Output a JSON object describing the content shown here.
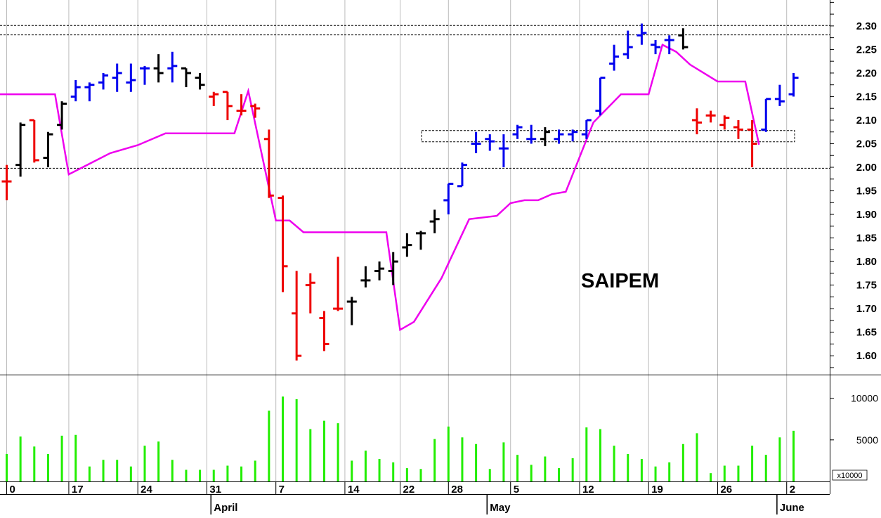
{
  "chart_data": {
    "type": "ohlc-bar-with-volume",
    "title": "SAIPEM",
    "colors": {
      "up": "#0000ee",
      "down": "#ee0000",
      "neutral": "#000000",
      "stop_line": "#ee00ee",
      "volume": "#22ee00",
      "grid": "#bbbbbb"
    },
    "price_axis": {
      "ylim": [
        1.56,
        2.355
      ],
      "ticks": [
        "1.60",
        "1.65",
        "1.70",
        "1.75",
        "1.80",
        "1.85",
        "1.90",
        "1.95",
        "2.00",
        "2.05",
        "2.10",
        "2.15",
        "2.20",
        "2.25",
        "2.30"
      ]
    },
    "volume_axis": {
      "ylim": [
        0,
        12000
      ],
      "ticks": [
        {
          "value": 5000,
          "label": "5000"
        },
        {
          "value": 10000,
          "label": "10000"
        }
      ],
      "multiplier_label": "x10000"
    },
    "x_ticks": [
      "0",
      "17",
      "24",
      "31",
      "7",
      "14",
      "22",
      "28",
      "5",
      "12",
      "19",
      "26",
      "2"
    ],
    "months": [
      "April",
      "May",
      "June"
    ],
    "bars": [
      {
        "o": 1.97,
        "h": 2.005,
        "l": 1.93,
        "c": 1.97,
        "color": "red",
        "vol": 3300
      },
      {
        "o": 2.005,
        "h": 2.095,
        "l": 1.98,
        "c": 2.09,
        "color": "black",
        "vol": 5400
      },
      {
        "o": 2.1,
        "h": 2.1,
        "l": 2.01,
        "c": 2.015,
        "color": "red",
        "vol": 4200
      },
      {
        "o": 2.02,
        "h": 2.075,
        "l": 2.0,
        "c": 2.07,
        "color": "black",
        "vol": 3300
      },
      {
        "o": 2.09,
        "h": 2.14,
        "l": 2.08,
        "c": 2.135,
        "color": "black",
        "vol": 5500
      },
      {
        "o": 2.15,
        "h": 2.185,
        "l": 2.14,
        "c": 2.17,
        "color": "blue",
        "vol": 5600
      },
      {
        "o": 2.17,
        "h": 2.18,
        "l": 2.14,
        "c": 2.175,
        "color": "blue",
        "vol": 1800
      },
      {
        "o": 2.18,
        "h": 2.2,
        "l": 2.165,
        "c": 2.195,
        "color": "blue",
        "vol": 2600
      },
      {
        "o": 2.19,
        "h": 2.22,
        "l": 2.16,
        "c": 2.2,
        "color": "blue",
        "vol": 2600
      },
      {
        "o": 2.18,
        "h": 2.22,
        "l": 2.16,
        "c": 2.185,
        "color": "blue",
        "vol": 1800
      },
      {
        "o": 2.21,
        "h": 2.215,
        "l": 2.175,
        "c": 2.21,
        "color": "blue",
        "vol": 4300
      },
      {
        "o": 2.21,
        "h": 2.24,
        "l": 2.18,
        "c": 2.2,
        "color": "black",
        "vol": 4800
      },
      {
        "o": 2.21,
        "h": 2.245,
        "l": 2.18,
        "c": 2.215,
        "color": "blue",
        "vol": 2600
      },
      {
        "o": 2.21,
        "h": 2.21,
        "l": 2.17,
        "c": 2.2,
        "color": "black",
        "vol": 1400
      },
      {
        "o": 2.19,
        "h": 2.2,
        "l": 2.165,
        "c": 2.175,
        "color": "black",
        "vol": 1400
      },
      {
        "o": 2.15,
        "h": 2.16,
        "l": 2.13,
        "c": 2.155,
        "color": "red",
        "vol": 1400
      },
      {
        "o": 2.16,
        "h": 2.16,
        "l": 2.1,
        "c": 2.13,
        "color": "red",
        "vol": 1900
      },
      {
        "o": 2.12,
        "h": 2.155,
        "l": 2.11,
        "c": 2.12,
        "color": "red",
        "vol": 1800
      },
      {
        "o": 2.13,
        "h": 2.135,
        "l": 2.105,
        "c": 2.125,
        "color": "red",
        "vol": 2500
      },
      {
        "o": 2.06,
        "h": 2.08,
        "l": 1.935,
        "c": 1.94,
        "color": "red",
        "vol": 8500
      },
      {
        "o": 1.935,
        "h": 1.94,
        "l": 1.735,
        "c": 1.79,
        "color": "red",
        "vol": 10200
      },
      {
        "o": 1.69,
        "h": 1.78,
        "l": 1.59,
        "c": 1.6,
        "color": "red",
        "vol": 9900
      },
      {
        "o": 1.75,
        "h": 1.775,
        "l": 1.69,
        "c": 1.755,
        "color": "red",
        "vol": 6300
      },
      {
        "o": 1.68,
        "h": 1.695,
        "l": 1.61,
        "c": 1.625,
        "color": "red",
        "vol": 7300
      },
      {
        "o": 1.7,
        "h": 1.81,
        "l": 1.695,
        "c": 1.7,
        "color": "red",
        "vol": 7000
      },
      {
        "o": 1.715,
        "h": 1.725,
        "l": 1.665,
        "c": 1.715,
        "color": "black",
        "vol": 2500
      },
      {
        "o": 1.76,
        "h": 1.79,
        "l": 1.745,
        "c": 1.76,
        "color": "black",
        "vol": 3700
      },
      {
        "o": 1.78,
        "h": 1.8,
        "l": 1.76,
        "c": 1.785,
        "color": "black",
        "vol": 2700
      },
      {
        "o": 1.78,
        "h": 1.82,
        "l": 1.75,
        "c": 1.8,
        "color": "black",
        "vol": 2300
      },
      {
        "o": 1.83,
        "h": 1.86,
        "l": 1.81,
        "c": 1.835,
        "color": "black",
        "vol": 1600
      },
      {
        "o": 1.86,
        "h": 1.865,
        "l": 1.825,
        "c": 1.86,
        "color": "black",
        "vol": 1500
      },
      {
        "o": 1.885,
        "h": 1.91,
        "l": 1.86,
        "c": 1.89,
        "color": "black",
        "vol": 5100
      },
      {
        "o": 1.93,
        "h": 1.965,
        "l": 1.9,
        "c": 1.965,
        "color": "blue",
        "vol": 6600
      },
      {
        "o": 1.96,
        "h": 2.01,
        "l": 1.96,
        "c": 2.005,
        "color": "blue",
        "vol": 5300
      },
      {
        "o": 2.05,
        "h": 2.075,
        "l": 2.03,
        "c": 2.05,
        "color": "blue",
        "vol": 4500
      },
      {
        "o": 2.06,
        "h": 2.07,
        "l": 2.035,
        "c": 2.055,
        "color": "blue",
        "vol": 1500
      },
      {
        "o": 2.04,
        "h": 2.07,
        "l": 2.0,
        "c": 2.04,
        "color": "blue",
        "vol": 4700
      },
      {
        "o": 2.07,
        "h": 2.09,
        "l": 2.06,
        "c": 2.085,
        "color": "blue",
        "vol": 3200
      },
      {
        "o": 2.06,
        "h": 2.09,
        "l": 2.05,
        "c": 2.06,
        "color": "blue",
        "vol": 2000
      },
      {
        "o": 2.06,
        "h": 2.085,
        "l": 2.045,
        "c": 2.075,
        "color": "black",
        "vol": 3000
      },
      {
        "o": 2.06,
        "h": 2.08,
        "l": 2.05,
        "c": 2.07,
        "color": "blue",
        "vol": 1600
      },
      {
        "o": 2.07,
        "h": 2.08,
        "l": 2.055,
        "c": 2.075,
        "color": "blue",
        "vol": 2800
      },
      {
        "o": 2.07,
        "h": 2.1,
        "l": 2.06,
        "c": 2.1,
        "color": "blue",
        "vol": 6500
      },
      {
        "o": 2.12,
        "h": 2.19,
        "l": 2.11,
        "c": 2.19,
        "color": "blue",
        "vol": 6300
      },
      {
        "o": 2.22,
        "h": 2.26,
        "l": 2.205,
        "c": 2.235,
        "color": "blue",
        "vol": 4300
      },
      {
        "o": 2.24,
        "h": 2.29,
        "l": 2.23,
        "c": 2.255,
        "color": "blue",
        "vol": 3300
      },
      {
        "o": 2.28,
        "h": 2.305,
        "l": 2.26,
        "c": 2.285,
        "color": "blue",
        "vol": 2700
      },
      {
        "o": 2.26,
        "h": 2.27,
        "l": 2.24,
        "c": 2.255,
        "color": "blue",
        "vol": 1800
      },
      {
        "o": 2.27,
        "h": 2.28,
        "l": 2.24,
        "c": 2.27,
        "color": "blue",
        "vol": 2300
      },
      {
        "o": 2.28,
        "h": 2.295,
        "l": 2.25,
        "c": 2.255,
        "color": "black",
        "vol": 4500
      },
      {
        "o": 2.1,
        "h": 2.125,
        "l": 2.07,
        "c": 2.095,
        "color": "red",
        "vol": 5800
      },
      {
        "o": 2.11,
        "h": 2.12,
        "l": 2.095,
        "c": 2.11,
        "color": "red",
        "vol": 1000
      },
      {
        "o": 2.09,
        "h": 2.11,
        "l": 2.08,
        "c": 2.105,
        "color": "red",
        "vol": 1900
      },
      {
        "o": 2.085,
        "h": 2.1,
        "l": 2.06,
        "c": 2.08,
        "color": "red",
        "vol": 1900
      },
      {
        "o": 2.08,
        "h": 2.1,
        "l": 2.0,
        "c": 2.05,
        "color": "red",
        "vol": 4300
      },
      {
        "o": 2.08,
        "h": 2.145,
        "l": 2.075,
        "c": 2.145,
        "color": "blue",
        "vol": 3200
      },
      {
        "o": 2.145,
        "h": 2.175,
        "l": 2.13,
        "c": 2.14,
        "color": "blue",
        "vol": 5300
      },
      {
        "o": 2.155,
        "h": 2.2,
        "l": 2.15,
        "c": 2.19,
        "color": "blue",
        "vol": 6100
      }
    ],
    "stop_line_segments": [
      [
        [
          0,
          2.155
        ],
        [
          4,
          2.155
        ],
        [
          5,
          1.985
        ],
        [
          8,
          2.03
        ],
        [
          10,
          2.047
        ],
        [
          12,
          2.072
        ],
        [
          17,
          2.072
        ],
        [
          18,
          2.162
        ],
        [
          20,
          1.887
        ],
        [
          21,
          1.887
        ],
        [
          22,
          1.862
        ],
        [
          28,
          1.862
        ],
        [
          29,
          1.655
        ],
        [
          30,
          1.672
        ],
        [
          32,
          1.765
        ],
        [
          34,
          1.89
        ],
        [
          36,
          1.897
        ],
        [
          37,
          1.924
        ],
        [
          38,
          1.93
        ],
        [
          39,
          1.93
        ],
        [
          40,
          1.943
        ],
        [
          41,
          1.948
        ],
        [
          43,
          2.095
        ],
        [
          45,
          2.155
        ],
        [
          47,
          2.155
        ],
        [
          48,
          2.26
        ],
        [
          49,
          2.245
        ],
        [
          50,
          2.218
        ],
        [
          52,
          2.182
        ],
        [
          54,
          2.182
        ],
        [
          55,
          2.048
        ]
      ]
    ],
    "reference_lines": [
      {
        "y": 2.301
      },
      {
        "y": 2.281
      },
      {
        "y": 1.998
      }
    ],
    "zone": {
      "y_top": 2.078,
      "y_bottom": 2.054
    }
  }
}
